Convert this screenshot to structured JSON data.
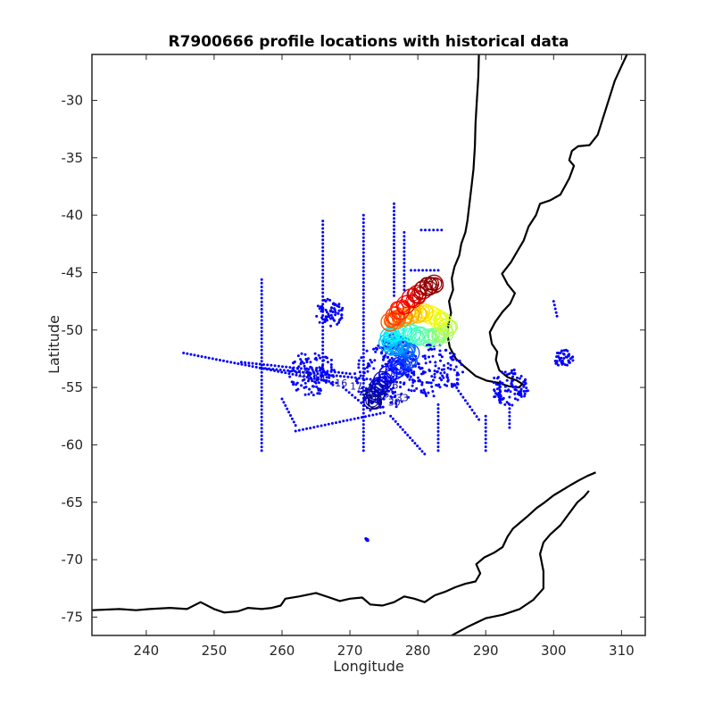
{
  "chart_data": {
    "type": "scatter",
    "title": "R7900666 profile locations with historical data",
    "xlabel": "Longitude",
    "ylabel": "Latitude",
    "xlim": [
      232,
      313.5
    ],
    "ylim": [
      -76.6,
      -26
    ],
    "xticks": [
      240,
      250,
      260,
      270,
      280,
      290,
      300,
      310
    ],
    "yticks": [
      -30,
      -35,
      -40,
      -45,
      -50,
      -55,
      -60,
      -65,
      -70,
      -75
    ],
    "grid": false,
    "colors": {
      "historical": "#0000ff",
      "coast": "#000000"
    },
    "series": [
      {
        "kind": "historical",
        "tracks": [
          [
            [
              257,
              -45.6
            ],
            [
              257,
              -60.5
            ]
          ],
          [
            [
              272,
              -40
            ],
            [
              272,
              -60.5
            ]
          ],
          [
            [
              266,
              -40.5
            ],
            [
              266,
              -54
            ]
          ],
          [
            [
              276.5,
              -39
            ],
            [
              276.5,
              -47
            ]
          ],
          [
            [
              278,
              -41.5
            ],
            [
              278,
              -46.5
            ]
          ],
          [
            [
              280.5,
              -41.3
            ],
            [
              283.5,
              -41.3
            ]
          ],
          [
            [
              279,
              -44.8
            ],
            [
              283,
              -44.8
            ]
          ],
          [
            [
              245.5,
              -52
            ],
            [
              268,
              -54.6
            ]
          ],
          [
            [
              254,
              -52.8
            ],
            [
              270,
              -53.8
            ]
          ],
          [
            [
              257,
              -53.3
            ],
            [
              278,
              -54.6
            ]
          ],
          [
            [
              286,
              -55.3
            ],
            [
              289,
              -57.8
            ]
          ],
          [
            [
              290,
              -57.5
            ],
            [
              290,
              -60.5
            ]
          ],
          [
            [
              293.5,
              -56.5
            ],
            [
              293.5,
              -58.5
            ]
          ],
          [
            [
              262,
              -58.8
            ],
            [
              275,
              -57.2
            ]
          ],
          [
            [
              283,
              -56.5
            ],
            [
              283,
              -60.5
            ]
          ],
          [
            [
              276,
              -57.5
            ],
            [
              281,
              -60.8
            ]
          ],
          [
            [
              260,
              -56
            ],
            [
              262,
              -58.3
            ]
          ],
          [
            [
              269,
              -55
            ],
            [
              273,
              -57
            ]
          ],
          [
            [
              300,
              -47.5
            ],
            [
              300.5,
              -48.8
            ]
          ]
        ],
        "clusters": [
          {
            "lon": 275.5,
            "lat": -54.0,
            "spread": 3.5
          },
          {
            "lon": 264.5,
            "lat": -53.8,
            "spread": 2.5
          },
          {
            "lon": 282.5,
            "lat": -53.5,
            "spread": 3.0
          },
          {
            "lon": 293.5,
            "lat": -55.0,
            "spread": 2.0
          },
          {
            "lon": 301.5,
            "lat": -52.5,
            "spread": 1.0
          },
          {
            "lon": 276.5,
            "lat": -51.5,
            "spread": 1.5
          },
          {
            "lon": 267.0,
            "lat": -48.5,
            "spread": 1.5
          }
        ],
        "isolated": [
          [
            272.5,
            -68.2
          ],
          [
            295.0,
            -55.5
          ],
          [
            292.0,
            -56.0
          ]
        ]
      },
      {
        "kind": "float-profiles",
        "colormap": "jet",
        "points": [
          [
            281.6,
            -46.2
          ],
          [
            282.4,
            -46.0
          ],
          [
            280.8,
            -46.5
          ],
          [
            279.9,
            -46.9
          ],
          [
            279.0,
            -47.2
          ],
          [
            278.2,
            -47.8
          ],
          [
            277.4,
            -48.3
          ],
          [
            276.6,
            -48.8
          ],
          [
            275.9,
            -49.3
          ],
          [
            276.8,
            -49.1
          ],
          [
            277.8,
            -48.9
          ],
          [
            278.9,
            -48.7
          ],
          [
            279.9,
            -48.6
          ],
          [
            280.9,
            -48.5
          ],
          [
            281.9,
            -48.7
          ],
          [
            282.9,
            -49.0
          ],
          [
            283.7,
            -49.3
          ],
          [
            284.3,
            -49.8
          ],
          [
            283.9,
            -50.3
          ],
          [
            282.8,
            -50.6
          ],
          [
            281.6,
            -50.7
          ],
          [
            280.3,
            -50.5
          ],
          [
            279.1,
            -50.3
          ],
          [
            277.8,
            -50.1
          ],
          [
            276.6,
            -50.2
          ],
          [
            275.8,
            -50.6
          ],
          [
            275.6,
            -51.1
          ],
          [
            276.3,
            -51.4
          ],
          [
            277.3,
            -51.3
          ],
          [
            278.3,
            -51.5
          ],
          [
            278.9,
            -52.0
          ],
          [
            278.4,
            -52.6
          ],
          [
            277.5,
            -53.1
          ],
          [
            276.6,
            -53.5
          ],
          [
            275.6,
            -53.9
          ],
          [
            274.8,
            -54.4
          ],
          [
            274.3,
            -54.9
          ],
          [
            273.8,
            -55.5
          ],
          [
            273.3,
            -56.1
          ]
        ]
      },
      {
        "kind": "profile-labels",
        "labels": [
          {
            "text": "10",
            "lon": 262.2,
            "lat": -54.1
          },
          {
            "text": "14",
            "lon": 264.6,
            "lat": -54.5
          },
          {
            "text": "16",
            "lon": 267.8,
            "lat": -54.9
          },
          {
            "text": "17",
            "lon": 270.0,
            "lat": -55.2
          },
          {
            "text": "20",
            "lon": 271.3,
            "lat": -55.7
          },
          {
            "text": "25",
            "lon": 274.0,
            "lat": -55.9
          },
          {
            "text": "26",
            "lon": 275.3,
            "lat": -55.1
          },
          {
            "text": "28",
            "lon": 272.6,
            "lat": -56.4
          },
          {
            "text": "30",
            "lon": 275.6,
            "lat": -56.6
          },
          {
            "text": "33",
            "lon": 276.8,
            "lat": -56.2
          }
        ]
      }
    ],
    "coastlines": {
      "south_america": [
        [
          289.0,
          -26.0
        ],
        [
          288.9,
          -28.0
        ],
        [
          288.7,
          -30.0
        ],
        [
          288.5,
          -32.0
        ],
        [
          288.4,
          -34.0
        ],
        [
          288.2,
          -36.0
        ],
        [
          287.9,
          -37.5
        ],
        [
          287.6,
          -39.0
        ],
        [
          287.3,
          -40.5
        ],
        [
          287.0,
          -41.5
        ],
        [
          286.4,
          -42.5
        ],
        [
          286.1,
          -43.5
        ],
        [
          285.4,
          -44.5
        ],
        [
          285.0,
          -45.5
        ],
        [
          285.2,
          -46.5
        ],
        [
          284.6,
          -47.5
        ],
        [
          284.9,
          -48.5
        ],
        [
          284.5,
          -49.5
        ],
        [
          284.4,
          -50.5
        ],
        [
          284.7,
          -51.5
        ],
        [
          285.6,
          -52.5
        ],
        [
          286.9,
          -53.2
        ],
        [
          288.5,
          -54.0
        ],
        [
          290.1,
          -54.4
        ],
        [
          291.9,
          -54.6
        ],
        [
          293.4,
          -54.9
        ],
        [
          294.9,
          -55.0
        ],
        [
          295.4,
          -54.7
        ],
        [
          294.6,
          -54.4
        ],
        [
          293.2,
          -54.1
        ],
        [
          292.0,
          -53.5
        ],
        [
          291.5,
          -52.6
        ],
        [
          291.7,
          -51.9
        ],
        [
          290.9,
          -51.2
        ],
        [
          290.6,
          -50.2
        ],
        [
          291.4,
          -49.3
        ],
        [
          292.5,
          -48.4
        ],
        [
          293.6,
          -47.7
        ],
        [
          294.3,
          -46.8
        ],
        [
          293.2,
          -46.0
        ],
        [
          292.4,
          -45.1
        ],
        [
          293.7,
          -44.1
        ],
        [
          294.8,
          -43.0
        ],
        [
          295.6,
          -42.2
        ],
        [
          296.3,
          -41.0
        ],
        [
          297.4,
          -40.0
        ],
        [
          298.0,
          -39.0
        ],
        [
          299.5,
          -38.7
        ],
        [
          301.0,
          -38.2
        ],
        [
          302.3,
          -36.8
        ],
        [
          303.0,
          -35.7
        ],
        [
          302.3,
          -35.2
        ],
        [
          302.7,
          -34.4
        ],
        [
          303.6,
          -34.0
        ],
        [
          305.3,
          -33.9
        ],
        [
          306.5,
          -33.0
        ],
        [
          307.4,
          -31.3
        ],
        [
          308.2,
          -29.8
        ],
        [
          309.0,
          -28.3
        ],
        [
          310.0,
          -27.0
        ],
        [
          310.8,
          -26.0
        ]
      ],
      "antarctica": [
        [
          232.0,
          -74.4
        ],
        [
          236.0,
          -74.3
        ],
        [
          238.5,
          -74.4
        ],
        [
          240.5,
          -74.3
        ],
        [
          243.5,
          -74.2
        ],
        [
          246.0,
          -74.3
        ],
        [
          248.0,
          -73.7
        ],
        [
          250.0,
          -74.3
        ],
        [
          251.5,
          -74.6
        ],
        [
          253.5,
          -74.5
        ],
        [
          255.0,
          -74.2
        ],
        [
          257.0,
          -74.3
        ],
        [
          258.5,
          -74.2
        ],
        [
          259.8,
          -74.0
        ],
        [
          260.5,
          -73.4
        ],
        [
          262.5,
          -73.2
        ],
        [
          265.0,
          -72.9
        ],
        [
          267.0,
          -73.3
        ],
        [
          268.5,
          -73.6
        ],
        [
          270.0,
          -73.4
        ],
        [
          271.8,
          -73.3
        ],
        [
          273.0,
          -73.9
        ],
        [
          274.8,
          -74.0
        ],
        [
          276.5,
          -73.7
        ],
        [
          278.0,
          -73.2
        ],
        [
          279.5,
          -73.4
        ],
        [
          281.0,
          -73.7
        ],
        [
          282.5,
          -73.1
        ],
        [
          284.0,
          -72.8
        ],
        [
          285.5,
          -72.4
        ],
        [
          287.0,
          -72.1
        ],
        [
          288.5,
          -71.9
        ],
        [
          289.2,
          -71.2
        ],
        [
          288.6,
          -70.4
        ],
        [
          289.8,
          -69.8
        ],
        [
          291.2,
          -69.4
        ],
        [
          292.5,
          -68.9
        ],
        [
          293.2,
          -68.0
        ],
        [
          294.0,
          -67.3
        ],
        [
          295.0,
          -66.8
        ],
        [
          296.2,
          -66.2
        ],
        [
          297.5,
          -65.5
        ],
        [
          298.7,
          -65.0
        ],
        [
          300.0,
          -64.4
        ],
        [
          301.4,
          -63.9
        ],
        [
          302.5,
          -63.5
        ],
        [
          303.7,
          -63.1
        ],
        [
          305.0,
          -62.7
        ],
        [
          306.2,
          -62.4
        ]
      ],
      "antarctic_coast_south": [
        [
          285.0,
          -76.6
        ],
        [
          287.5,
          -75.8
        ],
        [
          290.0,
          -75.1
        ],
        [
          292.5,
          -74.8
        ],
        [
          295.0,
          -74.3
        ],
        [
          297.0,
          -73.5
        ],
        [
          298.5,
          -72.5
        ],
        [
          298.5,
          -71.0
        ],
        [
          298.0,
          -69.5
        ],
        [
          298.5,
          -68.5
        ],
        [
          299.5,
          -67.8
        ],
        [
          301.0,
          -67.0
        ],
        [
          302.5,
          -65.8
        ],
        [
          303.5,
          -65.0
        ],
        [
          304.5,
          -64.5
        ],
        [
          305.2,
          -64.0
        ]
      ]
    }
  }
}
